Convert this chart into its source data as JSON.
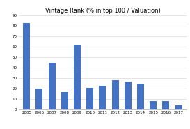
{
  "title": "Vintage Rank (% in top 100 / Valuation)",
  "categories": [
    "2005",
    "2006",
    "2007",
    "2008",
    "2009",
    "2010",
    "2011",
    "2012",
    "2013",
    "2014",
    "2015",
    "2016",
    "2017"
  ],
  "values": [
    83,
    20,
    45,
    17,
    62,
    21,
    23,
    28,
    27,
    25,
    8,
    8,
    4
  ],
  "bar_color": "#4472C4",
  "ylim": [
    0,
    90
  ],
  "yticks": [
    0,
    10,
    20,
    30,
    40,
    50,
    60,
    70,
    80,
    90
  ],
  "background_color": "#ffffff",
  "title_fontsize": 6,
  "tick_fontsize": 4,
  "grid_color": "#d0d0d0"
}
